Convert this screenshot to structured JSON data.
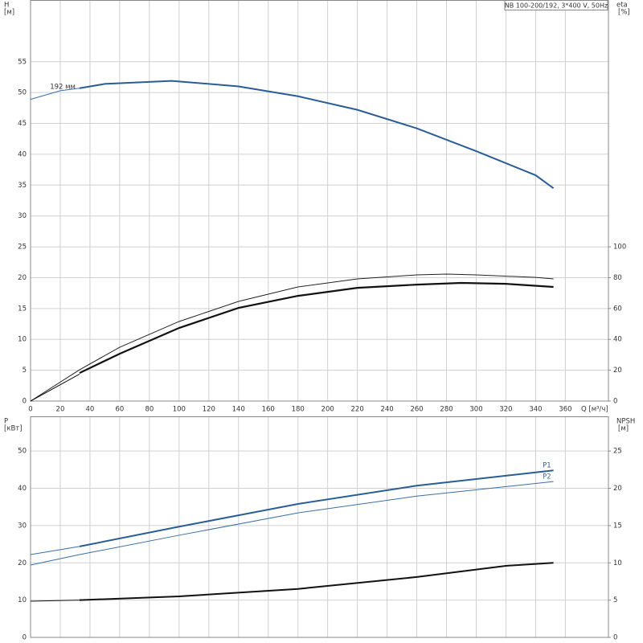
{
  "chart_data": [
    {
      "type": "line",
      "title": "NB 100-200/192, 3*400 V, 50Hz",
      "ylabel": "H",
      "ylabel_unit": "[м]",
      "y2label": "eta",
      "y2label_unit": "[%]",
      "xlabel": "Q [м³/ч]",
      "xlim": [
        0,
        389
      ],
      "ylim": [
        0,
        65
      ],
      "y2lim": [
        0,
        260
      ],
      "xticks": [
        0,
        20,
        40,
        60,
        80,
        100,
        120,
        140,
        160,
        180,
        200,
        220,
        240,
        260,
        280,
        300,
        320,
        340,
        360
      ],
      "yticks": [
        0,
        5,
        10,
        15,
        20,
        25,
        30,
        35,
        40,
        45,
        50,
        55
      ],
      "y2ticks": [
        0,
        20,
        40,
        60,
        80,
        100
      ],
      "grid": true,
      "show_xtick_labels": true,
      "series": [
        {
          "color": "#3a6ea5",
          "width": 1,
          "x": [
            0,
            20,
            33
          ],
          "values": [
            48.9,
            50.3,
            50.7
          ]
        },
        {
          "name": "192 мм",
          "name_position": "start",
          "color": "#2a5d94",
          "width": 2,
          "x": [
            33,
            50,
            95,
            140,
            180,
            220,
            260,
            300,
            340,
            352
          ],
          "values": [
            50.7,
            51.4,
            51.9,
            51.0,
            49.4,
            47.2,
            44.2,
            40.5,
            36.6,
            34.5
          ]
        },
        {
          "color": "#222222",
          "width": 1,
          "axis": "y2",
          "x": [
            0,
            33,
            60,
            100,
            140,
            180,
            220,
            260,
            280,
            300,
            340,
            352
          ],
          "values": [
            0,
            20.3,
            34.9,
            51.6,
            64.6,
            74,
            79.2,
            81.8,
            82.3,
            81.8,
            80.2,
            79.2
          ]
        },
        {
          "color": "#111111",
          "width": 1,
          "axis": "y2",
          "x": [
            0,
            33
          ],
          "values": [
            0,
            17.5
          ]
        },
        {
          "color": "#111111",
          "width": 2.2,
          "axis": "y2",
          "x": [
            33,
            60,
            100,
            140,
            180,
            220,
            260,
            290,
            320,
            352
          ],
          "values": [
            18.2,
            30.7,
            47.4,
            60.4,
            68.2,
            73.4,
            75.5,
            76.6,
            76,
            74
          ]
        }
      ]
    },
    {
      "type": "line",
      "ylabel": "P",
      "ylabel_unit": "[кВт]",
      "y2label": "NPSH",
      "y2label_unit": "[м]",
      "xlim": [
        0,
        389
      ],
      "ylim": [
        0,
        59.3
      ],
      "y2lim": [
        0,
        29.65
      ],
      "xticks": [
        0,
        20,
        40,
        60,
        80,
        100,
        120,
        140,
        160,
        180,
        200,
        220,
        240,
        260,
        280,
        300,
        320,
        340,
        360
      ],
      "yticks": [
        0,
        10,
        20,
        30,
        40,
        50
      ],
      "y2ticks": [
        0,
        5,
        10,
        15,
        20,
        25
      ],
      "grid": true,
      "show_xtick_labels": false,
      "series": [
        {
          "color": "#3a6ea5",
          "width": 1,
          "x": [
            0,
            33
          ],
          "values": [
            22.2,
            24.4
          ]
        },
        {
          "name": "P1",
          "name_position": "end",
          "color": "#2a5d94",
          "width": 2,
          "x": [
            33,
            100,
            180,
            260,
            352
          ],
          "values": [
            24.4,
            29.7,
            35.8,
            40.7,
            44.8
          ]
        },
        {
          "name": "P2",
          "name_position": "end",
          "color": "#3a6ea5",
          "width": 1,
          "x": [
            0,
            33,
            100,
            180,
            260,
            352
          ],
          "values": [
            19.4,
            22.2,
            27.4,
            33.4,
            37.9,
            41.8
          ]
        },
        {
          "color": "#111111",
          "width": 1,
          "axis": "y2",
          "x": [
            0,
            33
          ],
          "values": [
            4.85,
            5.0
          ]
        },
        {
          "color": "#111111",
          "width": 2,
          "axis": "y2",
          "x": [
            33,
            100,
            180,
            260,
            320,
            352
          ],
          "values": [
            5.0,
            5.5,
            6.5,
            8.1,
            9.6,
            10.0
          ]
        }
      ]
    }
  ]
}
